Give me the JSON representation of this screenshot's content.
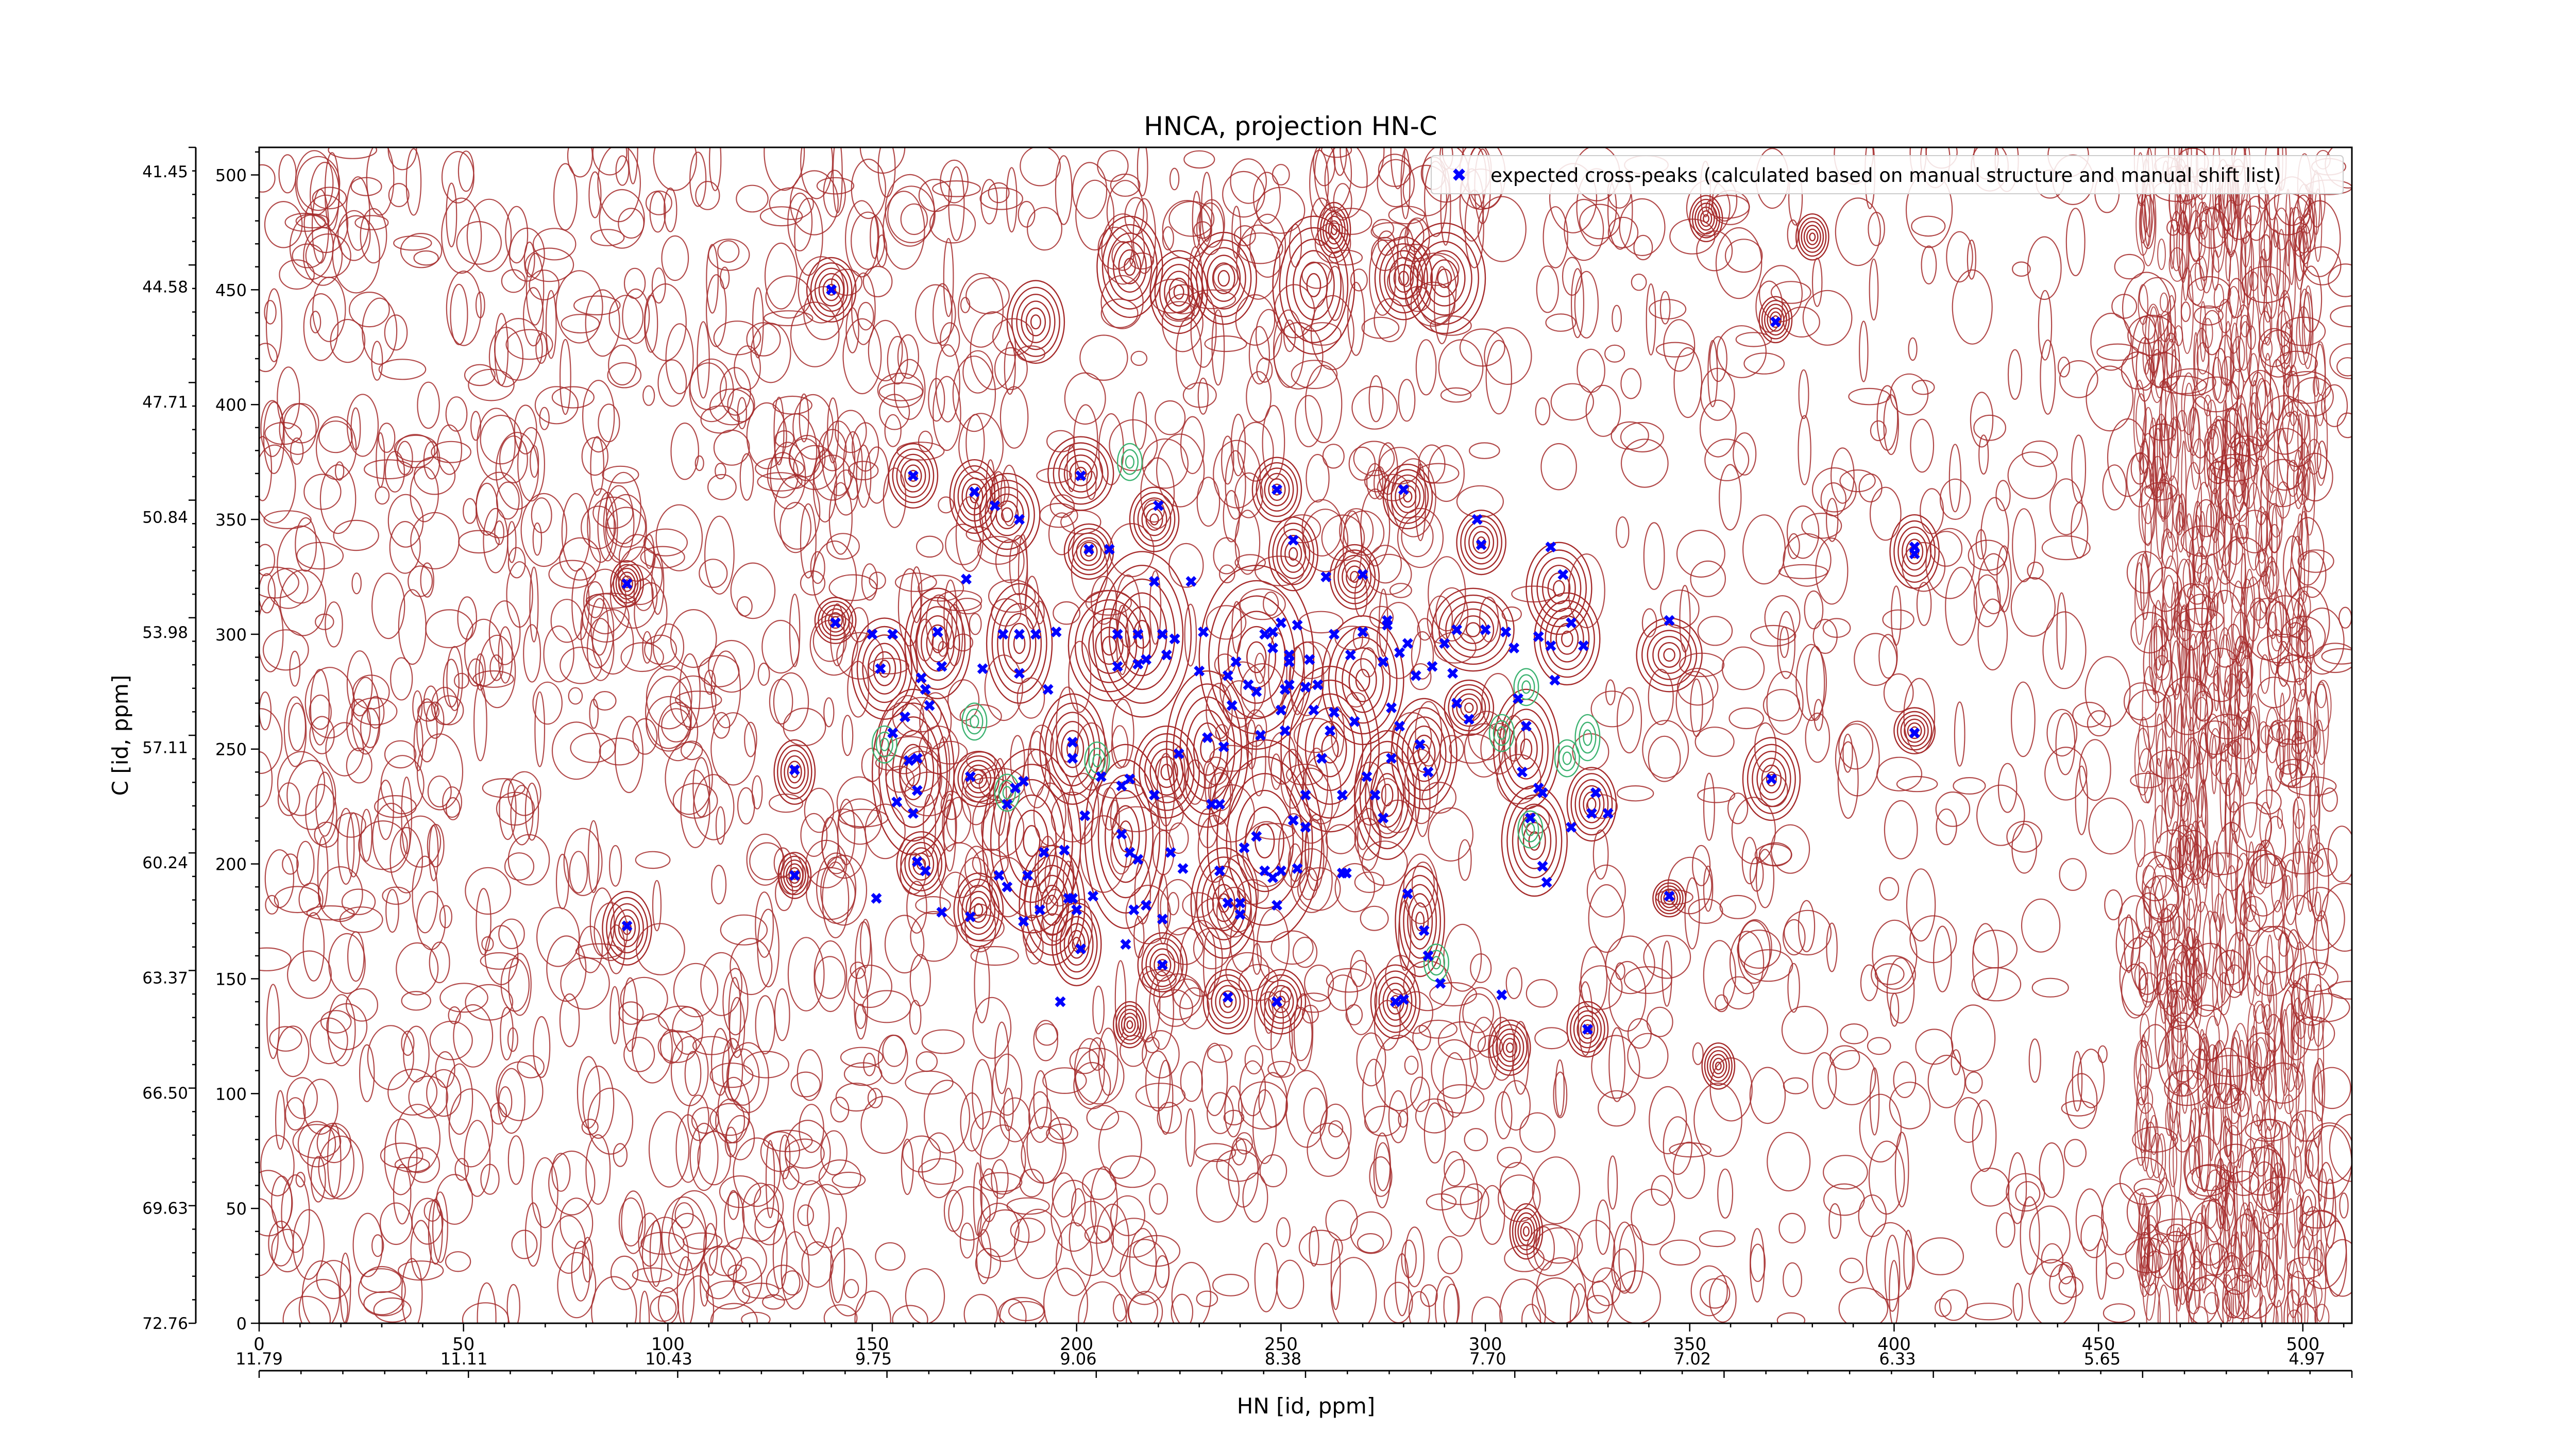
{
  "chart_data": {
    "type": "scatter",
    "title": "HNCA, projection HN-C",
    "xlabel": "HN [id, ppm]",
    "ylabel": "C [id, ppm]",
    "x_index_ticks": [
      "0",
      "50",
      "100",
      "150",
      "200",
      "250",
      "300",
      "350",
      "400",
      "450",
      "500"
    ],
    "x_ppm_ticks": [
      "11.79",
      "11.11",
      "10.43",
      "9.75",
      "9.06",
      "8.38",
      "7.70",
      "7.02",
      "6.33",
      "5.65",
      "4.97"
    ],
    "y_index_ticks": [
      "500",
      "450",
      "400",
      "350",
      "300",
      "250",
      "200",
      "150",
      "100",
      "50",
      "0"
    ],
    "y_ppm_ticks": [
      "41.45",
      "44.58",
      "47.71",
      "50.84",
      "53.98",
      "57.11",
      "60.24",
      "63.37",
      "66.50",
      "69.63",
      "72.76"
    ],
    "xlim": [
      0,
      512
    ],
    "ylim": [
      0,
      512
    ],
    "grid": false,
    "legend_position": "top-right",
    "legend": [
      "expected cross-peaks (calculated based on manual structure and manual shift list)"
    ],
    "colors": {
      "contour_positive": "#a52a2a",
      "contour_negative": "#3cb371",
      "peak_marker": "#0000ff",
      "axis": "#000000"
    },
    "series": [
      {
        "name": "expected cross-peaks (calculated based on manual structure and manual shift list)",
        "marker": "x",
        "points": [
          [
            90,
            322
          ],
          [
            90,
            173
          ],
          [
            131,
            241
          ],
          [
            131,
            195
          ],
          [
            140,
            450
          ],
          [
            141,
            305
          ],
          [
            150,
            300
          ],
          [
            151,
            185
          ],
          [
            152,
            285
          ],
          [
            155,
            300
          ],
          [
            155,
            257
          ],
          [
            156,
            227
          ],
          [
            158,
            264
          ],
          [
            159,
            245
          ],
          [
            160,
            369
          ],
          [
            160,
            222
          ],
          [
            161,
            232
          ],
          [
            161,
            246
          ],
          [
            161,
            201
          ],
          [
            162,
            281
          ],
          [
            163,
            276
          ],
          [
            163,
            197
          ],
          [
            164,
            269
          ],
          [
            166,
            301
          ],
          [
            167,
            286
          ],
          [
            167,
            179
          ],
          [
            173,
            324
          ],
          [
            174,
            177
          ],
          [
            174,
            238
          ],
          [
            175,
            362
          ],
          [
            177,
            285
          ],
          [
            180,
            356
          ],
          [
            181,
            195
          ],
          [
            182,
            300
          ],
          [
            183,
            190
          ],
          [
            183,
            226
          ],
          [
            185,
            233
          ],
          [
            186,
            300
          ],
          [
            186,
            350
          ],
          [
            186,
            283
          ],
          [
            187,
            236
          ],
          [
            187,
            175
          ],
          [
            188,
            195
          ],
          [
            190,
            300
          ],
          [
            191,
            180
          ],
          [
            192,
            205
          ],
          [
            193,
            276
          ],
          [
            195,
            301
          ],
          [
            196,
            140
          ],
          [
            197,
            206
          ],
          [
            198,
            185
          ],
          [
            199,
            185
          ],
          [
            199,
            253
          ],
          [
            199,
            246
          ],
          [
            200,
            180
          ],
          [
            201,
            369
          ],
          [
            201,
            163
          ],
          [
            202,
            221
          ],
          [
            203,
            337
          ],
          [
            204,
            186
          ],
          [
            206,
            238
          ],
          [
            208,
            337
          ],
          [
            210,
            300
          ],
          [
            210,
            286
          ],
          [
            211,
            234
          ],
          [
            211,
            213
          ],
          [
            212,
            165
          ],
          [
            213,
            205
          ],
          [
            213,
            237
          ],
          [
            214,
            180
          ],
          [
            215,
            300
          ],
          [
            215,
            202
          ],
          [
            215,
            287
          ],
          [
            217,
            289
          ],
          [
            217,
            182
          ],
          [
            219,
            323
          ],
          [
            219,
            230
          ],
          [
            220,
            356
          ],
          [
            221,
            300
          ],
          [
            221,
            176
          ],
          [
            221,
            156
          ],
          [
            222,
            291
          ],
          [
            223,
            205
          ],
          [
            224,
            298
          ],
          [
            225,
            248
          ],
          [
            226,
            198
          ],
          [
            228,
            323
          ],
          [
            230,
            284
          ],
          [
            231,
            301
          ],
          [
            232,
            255
          ],
          [
            233,
            226
          ],
          [
            235,
            226
          ],
          [
            235,
            197
          ],
          [
            236,
            251
          ],
          [
            237,
            142
          ],
          [
            237,
            183
          ],
          [
            237,
            282
          ],
          [
            238,
            269
          ],
          [
            239,
            288
          ],
          [
            240,
            178
          ],
          [
            240,
            183
          ],
          [
            241,
            207
          ],
          [
            242,
            278
          ],
          [
            244,
            275
          ],
          [
            244,
            212
          ],
          [
            245,
            256
          ],
          [
            246,
            300
          ],
          [
            246,
            197
          ],
          [
            248,
            294
          ],
          [
            248,
            301
          ],
          [
            248,
            194
          ],
          [
            249,
            182
          ],
          [
            249,
            140
          ],
          [
            249,
            363
          ],
          [
            250,
            197
          ],
          [
            250,
            267
          ],
          [
            250,
            305
          ],
          [
            251,
            276
          ],
          [
            251,
            258
          ],
          [
            252,
            288
          ],
          [
            252,
            291
          ],
          [
            252,
            278
          ],
          [
            253,
            341
          ],
          [
            253,
            219
          ],
          [
            254,
            198
          ],
          [
            254,
            304
          ],
          [
            256,
            277
          ],
          [
            256,
            216
          ],
          [
            256,
            230
          ],
          [
            257,
            289
          ],
          [
            258,
            267
          ],
          [
            259,
            278
          ],
          [
            260,
            246
          ],
          [
            261,
            325
          ],
          [
            262,
            258
          ],
          [
            263,
            300
          ],
          [
            263,
            266
          ],
          [
            265,
            230
          ],
          [
            265,
            196
          ],
          [
            266,
            196
          ],
          [
            267,
            291
          ],
          [
            268,
            262
          ],
          [
            270,
            326
          ],
          [
            270,
            301
          ],
          [
            271,
            238
          ],
          [
            273,
            230
          ],
          [
            275,
            220
          ],
          [
            275,
            288
          ],
          [
            276,
            304
          ],
          [
            276,
            306
          ],
          [
            277,
            246
          ],
          [
            277,
            268
          ],
          [
            278,
            140
          ],
          [
            279,
            292
          ],
          [
            279,
            260
          ],
          [
            280,
            363
          ],
          [
            280,
            141
          ],
          [
            281,
            296
          ],
          [
            281,
            187
          ],
          [
            283,
            282
          ],
          [
            284,
            252
          ],
          [
            285,
            171
          ],
          [
            286,
            240
          ],
          [
            286,
            160
          ],
          [
            287,
            286
          ],
          [
            289,
            148
          ],
          [
            290,
            296
          ],
          [
            292,
            283
          ],
          [
            293,
            302
          ],
          [
            293,
            270
          ],
          [
            296,
            263
          ],
          [
            298,
            350
          ],
          [
            299,
            339
          ],
          [
            300,
            302
          ],
          [
            304,
            143
          ],
          [
            305,
            301
          ],
          [
            307,
            294
          ],
          [
            308,
            272
          ],
          [
            309,
            240
          ],
          [
            310,
            260
          ],
          [
            311,
            220
          ],
          [
            313,
            233
          ],
          [
            313,
            299
          ],
          [
            314,
            231
          ],
          [
            314,
            199
          ],
          [
            315,
            192
          ],
          [
            316,
            338
          ],
          [
            316,
            295
          ],
          [
            317,
            280
          ],
          [
            319,
            326
          ],
          [
            321,
            305
          ],
          [
            321,
            216
          ],
          [
            324,
            295
          ],
          [
            325,
            128
          ],
          [
            326,
            222
          ],
          [
            327,
            231
          ],
          [
            330,
            222
          ],
          [
            345,
            186
          ],
          [
            345,
            306
          ],
          [
            370,
            237
          ],
          [
            371,
            436
          ],
          [
            405,
            335
          ],
          [
            405,
            257
          ],
          [
            405,
            338
          ]
        ]
      }
    ],
    "contour_peaks": [
      [
        90,
        322,
        4,
        10
      ],
      [
        90,
        172,
        6,
        16
      ],
      [
        131,
        240,
        5,
        14
      ],
      [
        131,
        195,
        4,
        10
      ],
      [
        140,
        450,
        6,
        14
      ],
      [
        141,
        306,
        5,
        10
      ],
      [
        153,
        285,
        8,
        22
      ],
      [
        160,
        369,
        6,
        14
      ],
      [
        160,
        240,
        10,
        36
      ],
      [
        162,
        200,
        6,
        14
      ],
      [
        166,
        296,
        8,
        24
      ],
      [
        175,
        360,
        6,
        16
      ],
      [
        176,
        237,
        6,
        12
      ],
      [
        176,
        180,
        6,
        16
      ],
      [
        183,
        352,
        8,
        18
      ],
      [
        186,
        296,
        8,
        26
      ],
      [
        189,
        210,
        12,
        40
      ],
      [
        190,
        436,
        7,
        18
      ],
      [
        194,
        182,
        8,
        26
      ],
      [
        199,
        250,
        8,
        24
      ],
      [
        200,
        165,
        6,
        18
      ],
      [
        201,
        370,
        8,
        16
      ],
      [
        203,
        336,
        6,
        12
      ],
      [
        208,
        295,
        10,
        24
      ],
      [
        212,
        212,
        10,
        40
      ],
      [
        213,
        460,
        8,
        22
      ],
      [
        216,
        300,
        12,
        36
      ],
      [
        219,
        350,
        6,
        14
      ],
      [
        221,
        156,
        6,
        14
      ],
      [
        222,
        240,
        8,
        20
      ],
      [
        225,
        449,
        7,
        18
      ],
      [
        232,
        250,
        10,
        34
      ],
      [
        236,
        455,
        8,
        20
      ],
      [
        236,
        183,
        8,
        24
      ],
      [
        237,
        140,
        6,
        14
      ],
      [
        244,
        290,
        14,
        40
      ],
      [
        246,
        210,
        14,
        44
      ],
      [
        249,
        363,
        6,
        14
      ],
      [
        250,
        140,
        6,
        14
      ],
      [
        253,
        335,
        6,
        16
      ],
      [
        258,
        452,
        10,
        30
      ],
      [
        262,
        250,
        12,
        36
      ],
      [
        268,
        325,
        6,
        14
      ],
      [
        270,
        280,
        10,
        28
      ],
      [
        276,
        230,
        8,
        28
      ],
      [
        280,
        455,
        7,
        18
      ],
      [
        281,
        360,
        6,
        14
      ],
      [
        285,
        248,
        8,
        24
      ],
      [
        284,
        175,
        6,
        24
      ],
      [
        278,
        140,
        6,
        16
      ],
      [
        290,
        455,
        10,
        24
      ],
      [
        297,
        302,
        10,
        18
      ],
      [
        296,
        268,
        6,
        12
      ],
      [
        299,
        340,
        6,
        14
      ],
      [
        306,
        120,
        5,
        12
      ],
      [
        310,
        250,
        8,
        26
      ],
      [
        312,
        210,
        8,
        24
      ],
      [
        318,
        320,
        8,
        20
      ],
      [
        320,
        298,
        8,
        20
      ],
      [
        325,
        128,
        5,
        12
      ],
      [
        326,
        226,
        6,
        16
      ],
      [
        345,
        291,
        8,
        16
      ],
      [
        345,
        185,
        4,
        8
      ],
      [
        370,
        237,
        7,
        18
      ],
      [
        371,
        437,
        4,
        10
      ],
      [
        405,
        336,
        6,
        16
      ],
      [
        405,
        258,
        5,
        10
      ],
      [
        310,
        40,
        4,
        12
      ],
      [
        357,
        112,
        4,
        10
      ],
      [
        263,
        476,
        4,
        12
      ],
      [
        380,
        473,
        4,
        10
      ],
      [
        354,
        481,
        4,
        10
      ],
      [
        213,
        130,
        4,
        10
      ]
    ],
    "negative_contours": [
      [
        213,
        375,
        3,
        8
      ],
      [
        205,
        245,
        3,
        8
      ],
      [
        183,
        231,
        3,
        8
      ],
      [
        288,
        157,
        3,
        8
      ],
      [
        304,
        257,
        3,
        8
      ],
      [
        310,
        277,
        3,
        8
      ],
      [
        311,
        215,
        3,
        8
      ],
      [
        325,
        255,
        3,
        10
      ],
      [
        320,
        246,
        3,
        8
      ],
      [
        153,
        252,
        3,
        8
      ],
      [
        175,
        262,
        3,
        8
      ]
    ]
  }
}
